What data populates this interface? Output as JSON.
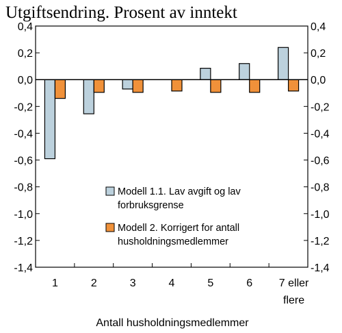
{
  "chart_data": {
    "type": "bar",
    "title": "Utgiftsendring. Prosent av inntekt",
    "xlabel": "Antall husholdningsmedlemmer",
    "ylabel": "",
    "ylim": [
      -1.4,
      0.4
    ],
    "yticks": [
      0.4,
      0.2,
      0.0,
      -0.2,
      -0.4,
      -0.6,
      -0.8,
      -1.0,
      -1.2,
      -1.4
    ],
    "ytick_labels": [
      "0,4",
      "0,2",
      "0,0",
      "-0,2",
      "-0,4",
      "-0,6",
      "-0,8",
      "-1,0",
      "-1,2",
      "-1,4"
    ],
    "categories": [
      [
        "1"
      ],
      [
        "2"
      ],
      [
        "3"
      ],
      [
        "4"
      ],
      [
        "5"
      ],
      [
        "6"
      ],
      [
        "7 eller",
        "flere"
      ]
    ],
    "grid": false,
    "legend_position": "lower-right inside",
    "series": [
      {
        "name_lines": [
          "Modell 1.1. Lav avgift og lav",
          "forbruksgrense"
        ],
        "color": "#bcd1dd",
        "values": [
          -0.59,
          -0.255,
          -0.07,
          0.0,
          0.085,
          0.12,
          0.24
        ]
      },
      {
        "name_lines": [
          "Modell 2. Korrigert for antall",
          "husholdningsmedlemmer"
        ],
        "color": "#f0913a",
        "values": [
          -0.14,
          -0.095,
          -0.095,
          -0.085,
          -0.095,
          -0.095,
          -0.085
        ]
      }
    ]
  }
}
